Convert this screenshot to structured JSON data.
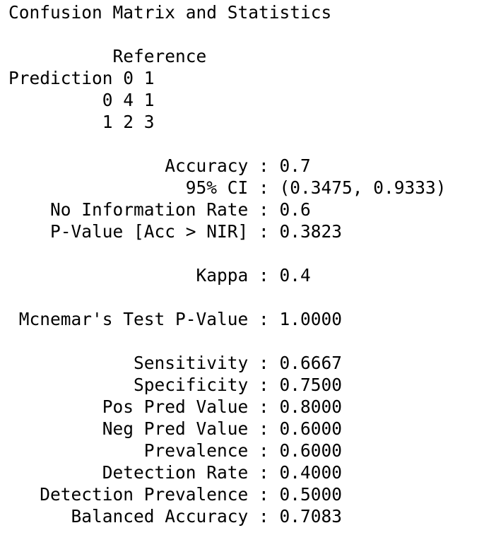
{
  "title": "Confusion Matrix and Statistics",
  "matrix": {
    "reference_label": "Reference",
    "prediction_label": "Prediction",
    "column_headers": [
      "0",
      "1"
    ],
    "rows": [
      {
        "label": "0",
        "cells": [
          "4",
          "1"
        ]
      },
      {
        "label": "1",
        "cells": [
          "2",
          "3"
        ]
      }
    ]
  },
  "overall": [
    {
      "label": "Accuracy",
      "value": "0.7"
    },
    {
      "label": "95% CI",
      "value": "(0.3475, 0.9333)"
    },
    {
      "label": "No Information Rate",
      "value": "0.6"
    },
    {
      "label": "P-Value [Acc > NIR]",
      "value": "0.3823"
    }
  ],
  "kappa": {
    "label": "Kappa",
    "value": "0.4"
  },
  "mcnemar": {
    "label": "Mcnemar's Test P-Value",
    "value": "1.0000"
  },
  "class_stats": [
    {
      "label": "Sensitivity",
      "value": "0.6667"
    },
    {
      "label": "Specificity",
      "value": "0.7500"
    },
    {
      "label": "Pos Pred Value",
      "value": "0.8000"
    },
    {
      "label": "Neg Pred Value",
      "value": "0.6000"
    },
    {
      "label": "Prevalence",
      "value": "0.6000"
    },
    {
      "label": "Detection Rate",
      "value": "0.4000"
    },
    {
      "label": "Detection Prevalence",
      "value": "0.5000"
    },
    {
      "label": "Balanced Accuracy",
      "value": "0.7083"
    }
  ],
  "separator": ":"
}
